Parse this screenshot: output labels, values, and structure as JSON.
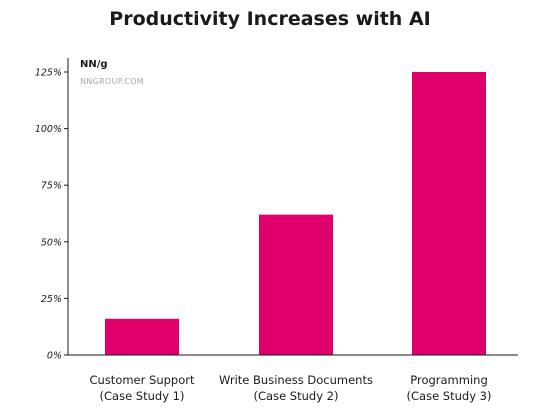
{
  "chart_data": {
    "type": "bar",
    "title": "Productivity Increases with AI",
    "categories": [
      [
        "Customer Support",
        "(Case Study 1)"
      ],
      [
        "Write Business Documents",
        "(Case Study 2)"
      ],
      [
        "Programming",
        "(Case Study 3)"
      ]
    ],
    "values": [
      16,
      62,
      125
    ],
    "ylim": [
      0,
      125
    ],
    "yticks": [
      {
        "value": 0,
        "label": "0%"
      },
      {
        "value": 25,
        "label": "25%"
      },
      {
        "value": 50,
        "label": "50%"
      },
      {
        "value": 75,
        "label": "75%"
      },
      {
        "value": 100,
        "label": "100%"
      },
      {
        "value": 125,
        "label": "125%"
      }
    ],
    "grid": false,
    "bar_color": "#e0006b"
  },
  "branding": {
    "logo_text": "NN/g",
    "url_text": "NNGROUP.COM"
  }
}
